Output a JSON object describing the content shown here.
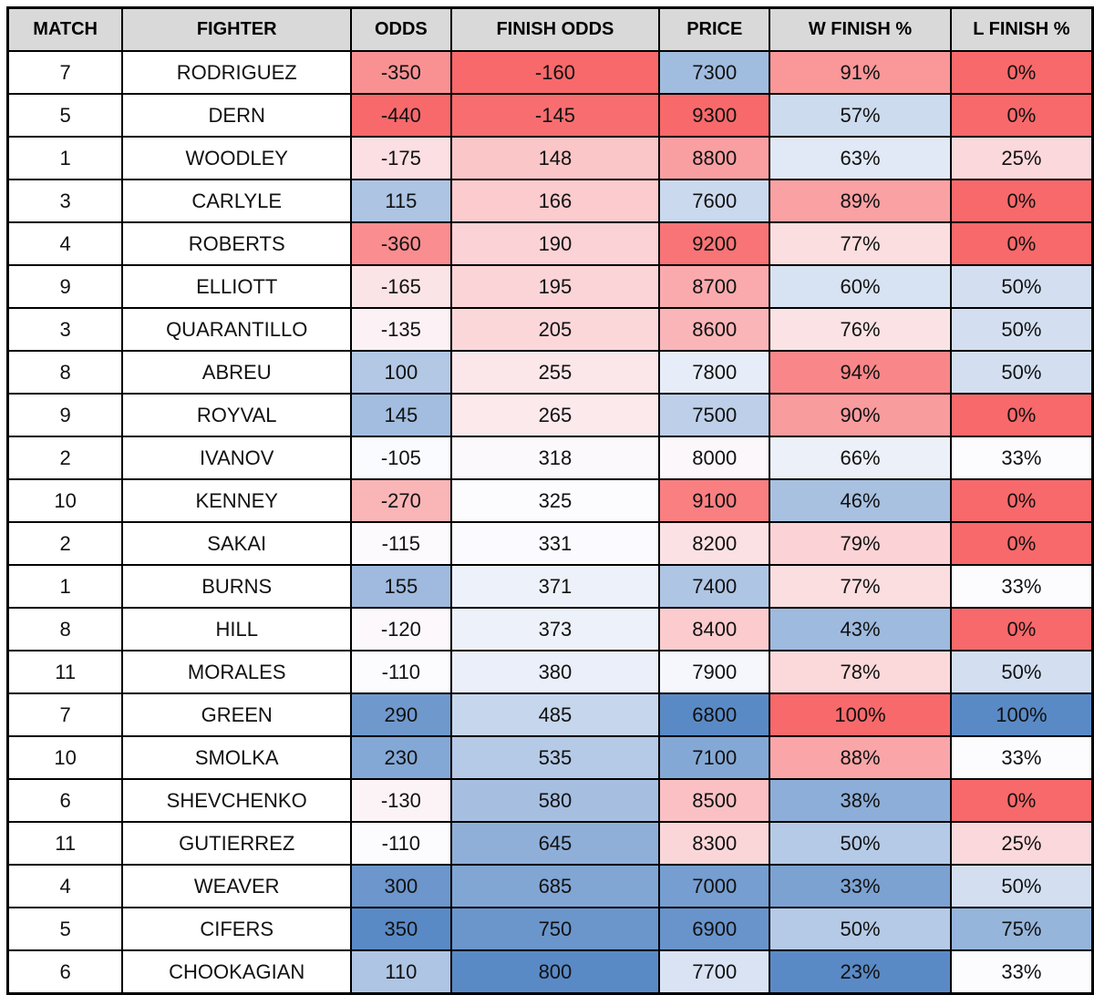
{
  "table": {
    "columns": [
      {
        "key": "match",
        "label": "MATCH",
        "suffix": "",
        "scale": null
      },
      {
        "key": "fighter",
        "label": "FIGHTER",
        "suffix": "",
        "scale": null
      },
      {
        "key": "odds",
        "label": "ODDS",
        "suffix": "",
        "scale": {
          "min": -440,
          "mid": -110,
          "max": 350,
          "colors": [
            "#F8696B",
            "#FCFCFF",
            "#5A8AC6"
          ]
        }
      },
      {
        "key": "finish_odds",
        "label": "FINISH ODDS",
        "suffix": "",
        "scale": {
          "min": -160,
          "mid": 328,
          "max": 800,
          "colors": [
            "#F8696B",
            "#FCFCFF",
            "#5A8AC6"
          ]
        }
      },
      {
        "key": "price",
        "label": "PRICE",
        "suffix": "",
        "scale": {
          "min": 6800,
          "mid": 7950,
          "max": 9300,
          "colors": [
            "#5A8AC6",
            "#FCFCFF",
            "#F8696B"
          ]
        }
      },
      {
        "key": "w_finish_pct",
        "label": "W FINISH %",
        "suffix": "%",
        "scale": {
          "min": 23,
          "mid": 71,
          "max": 100,
          "colors": [
            "#5A8AC6",
            "#FCFCFF",
            "#F8696B"
          ]
        }
      },
      {
        "key": "l_finish_pct",
        "label": "L FINISH %",
        "suffix": "%",
        "scale": {
          "min": 0,
          "mid": 33,
          "max": 100,
          "colors": [
            "#F8696B",
            "#FCFCFF",
            "#5A8AC6"
          ]
        }
      }
    ],
    "rows": [
      {
        "match": 7,
        "fighter": "RODRIGUEZ",
        "odds": -350,
        "finish_odds": -160,
        "price": 7300,
        "w_finish_pct": 91,
        "l_finish_pct": 0
      },
      {
        "match": 5,
        "fighter": "DERN",
        "odds": -440,
        "finish_odds": -145,
        "price": 9300,
        "w_finish_pct": 57,
        "l_finish_pct": 0
      },
      {
        "match": 1,
        "fighter": "WOODLEY",
        "odds": -175,
        "finish_odds": 148,
        "price": 8800,
        "w_finish_pct": 63,
        "l_finish_pct": 25
      },
      {
        "match": 3,
        "fighter": "CARLYLE",
        "odds": 115,
        "finish_odds": 166,
        "price": 7600,
        "w_finish_pct": 89,
        "l_finish_pct": 0
      },
      {
        "match": 4,
        "fighter": "ROBERTS",
        "odds": -360,
        "finish_odds": 190,
        "price": 9200,
        "w_finish_pct": 77,
        "l_finish_pct": 0
      },
      {
        "match": 9,
        "fighter": "ELLIOTT",
        "odds": -165,
        "finish_odds": 195,
        "price": 8700,
        "w_finish_pct": 60,
        "l_finish_pct": 50
      },
      {
        "match": 3,
        "fighter": "QUARANTILLO",
        "odds": -135,
        "finish_odds": 205,
        "price": 8600,
        "w_finish_pct": 76,
        "l_finish_pct": 50
      },
      {
        "match": 8,
        "fighter": "ABREU",
        "odds": 100,
        "finish_odds": 255,
        "price": 7800,
        "w_finish_pct": 94,
        "l_finish_pct": 50
      },
      {
        "match": 9,
        "fighter": "ROYVAL",
        "odds": 145,
        "finish_odds": 265,
        "price": 7500,
        "w_finish_pct": 90,
        "l_finish_pct": 0
      },
      {
        "match": 2,
        "fighter": "IVANOV",
        "odds": -105,
        "finish_odds": 318,
        "price": 8000,
        "w_finish_pct": 66,
        "l_finish_pct": 33
      },
      {
        "match": 10,
        "fighter": "KENNEY",
        "odds": -270,
        "finish_odds": 325,
        "price": 9100,
        "w_finish_pct": 46,
        "l_finish_pct": 0
      },
      {
        "match": 2,
        "fighter": "SAKAI",
        "odds": -115,
        "finish_odds": 331,
        "price": 8200,
        "w_finish_pct": 79,
        "l_finish_pct": 0
      },
      {
        "match": 1,
        "fighter": "BURNS",
        "odds": 155,
        "finish_odds": 371,
        "price": 7400,
        "w_finish_pct": 77,
        "l_finish_pct": 33
      },
      {
        "match": 8,
        "fighter": "HILL",
        "odds": -120,
        "finish_odds": 373,
        "price": 8400,
        "w_finish_pct": 43,
        "l_finish_pct": 0
      },
      {
        "match": 11,
        "fighter": "MORALES",
        "odds": -110,
        "finish_odds": 380,
        "price": 7900,
        "w_finish_pct": 78,
        "l_finish_pct": 50
      },
      {
        "match": 7,
        "fighter": "GREEN",
        "odds": 290,
        "finish_odds": 485,
        "price": 6800,
        "w_finish_pct": 100,
        "l_finish_pct": 100
      },
      {
        "match": 10,
        "fighter": "SMOLKA",
        "odds": 230,
        "finish_odds": 535,
        "price": 7100,
        "w_finish_pct": 88,
        "l_finish_pct": 33
      },
      {
        "match": 6,
        "fighter": "SHEVCHENKO",
        "odds": -130,
        "finish_odds": 580,
        "price": 8500,
        "w_finish_pct": 38,
        "l_finish_pct": 0
      },
      {
        "match": 11,
        "fighter": "GUTIERREZ",
        "odds": -110,
        "finish_odds": 645,
        "price": 8300,
        "w_finish_pct": 50,
        "l_finish_pct": 25
      },
      {
        "match": 4,
        "fighter": "WEAVER",
        "odds": 300,
        "finish_odds": 685,
        "price": 7000,
        "w_finish_pct": 33,
        "l_finish_pct": 50
      },
      {
        "match": 5,
        "fighter": "CIFERS",
        "odds": 350,
        "finish_odds": 750,
        "price": 6900,
        "w_finish_pct": 50,
        "l_finish_pct": 75
      },
      {
        "match": 6,
        "fighter": "CHOOKAGIAN",
        "odds": 110,
        "finish_odds": 800,
        "price": 7700,
        "w_finish_pct": 23,
        "l_finish_pct": 33
      }
    ]
  },
  "colors": {
    "header_background": "#d9d9d9",
    "grid_border": "#000000",
    "scale_low_red": "#F8696B",
    "scale_mid_white": "#FCFCFF",
    "scale_high_blue": "#5A8AC6"
  }
}
